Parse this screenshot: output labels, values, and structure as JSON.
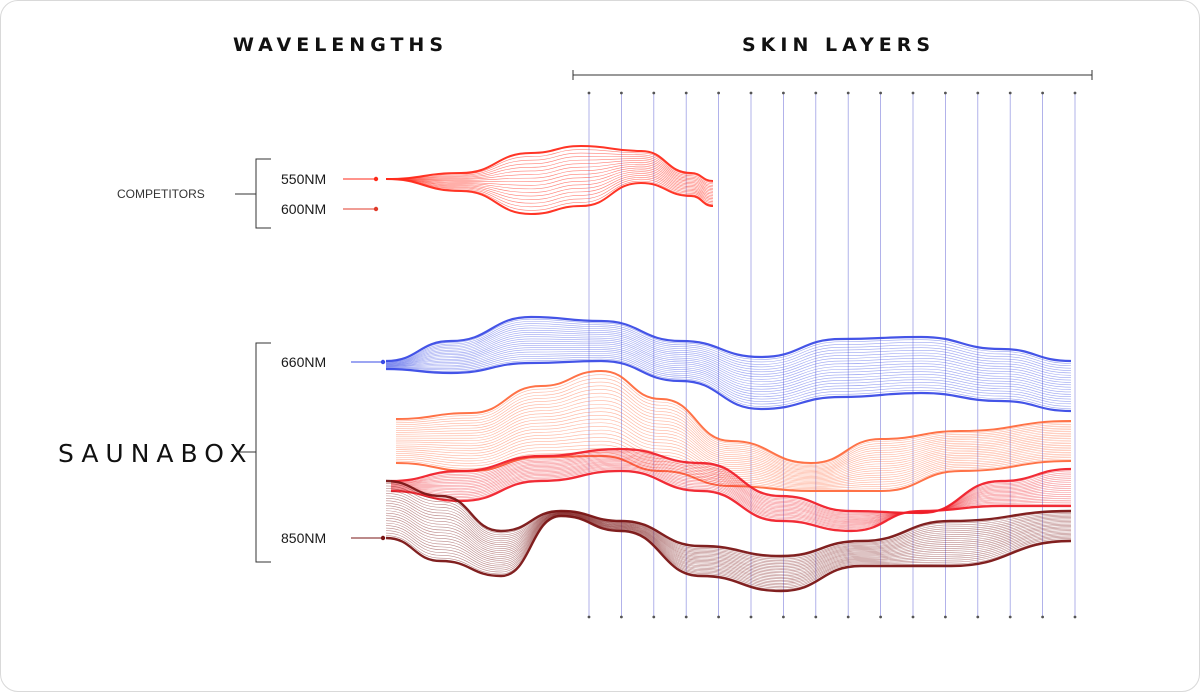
{
  "headings": {
    "wavelengths": "WAVELENGTHS",
    "skin_layers": "SKIN LAYERS"
  },
  "groups": {
    "competitors": {
      "label": "COMPETITORS",
      "wavelengths": [
        "550NM",
        "600NM"
      ]
    },
    "saunabox": {
      "label": "SAUNABOX",
      "wavelengths": [
        "660NM",
        "850NM"
      ]
    }
  },
  "colors": {
    "nm550": "#ff2a1a",
    "nm600": "#e03b2b",
    "nm660": "#3a4be6",
    "nm660_mid": "#ff6a3d",
    "nm_red": "#f0202a",
    "nm850": "#7a1414",
    "axis": "#333333",
    "layer_line": "#8d8fe0"
  },
  "skin_layer_count": 16
}
